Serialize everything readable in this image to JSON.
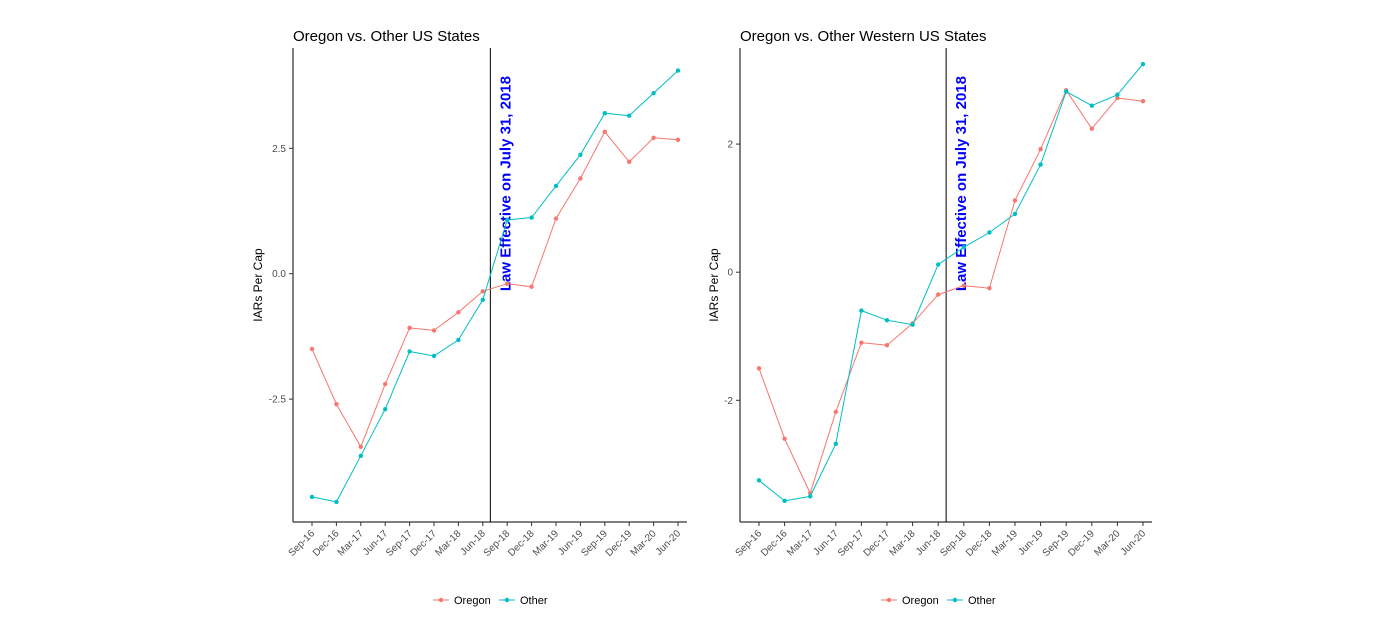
{
  "chart_data": [
    {
      "type": "line",
      "title": "Oregon vs. Other US States",
      "xlabel": "",
      "ylabel": "IARs Per Cap",
      "categories": [
        "Sep-16",
        "Dec-16",
        "Mar-17",
        "Jun-17",
        "Sep-17",
        "Dec-17",
        "Mar-18",
        "Jun-18",
        "Sep-18",
        "Dec-18",
        "Mar-19",
        "Jun-19",
        "Sep-19",
        "Dec-19",
        "Mar-20",
        "Jun-20"
      ],
      "yticks": [
        2.5,
        0.0,
        -2.5
      ],
      "ytick_labels": [
        "2.5",
        "0.0",
        "-2.5"
      ],
      "ylim": [
        -4.95,
        4.5
      ],
      "series": [
        {
          "name": "Oregon",
          "color": "#F8766D",
          "values": [
            -1.5,
            -2.6,
            -3.45,
            -2.2,
            -1.08,
            -1.13,
            -0.77,
            -0.35,
            -0.2,
            -0.26,
            1.1,
            1.9,
            2.83,
            2.23,
            2.71,
            2.67
          ]
        },
        {
          "name": "Other",
          "color": "#00BFC4",
          "values": [
            -4.45,
            -4.55,
            -3.63,
            -2.7,
            -1.55,
            -1.64,
            -1.32,
            -0.52,
            1.07,
            1.12,
            1.75,
            2.37,
            3.2,
            3.15,
            3.6,
            4.05
          ]
        }
      ],
      "vline": {
        "between": [
          "Jun-18",
          "Sep-18"
        ],
        "fraction": 0.31,
        "label": "Law Effective on July 31, 2018"
      },
      "legend": "bottom",
      "grid": false
    },
    {
      "type": "line",
      "title": "Oregon vs. Other Western US States",
      "xlabel": "",
      "ylabel": "IARs Per Cap",
      "categories": [
        "Sep-16",
        "Dec-16",
        "Mar-17",
        "Jun-17",
        "Sep-17",
        "Dec-17",
        "Mar-18",
        "Jun-18",
        "Sep-18",
        "Dec-18",
        "Mar-19",
        "Jun-19",
        "Sep-19",
        "Dec-19",
        "Mar-20",
        "Jun-20"
      ],
      "yticks": [
        2,
        0,
        -2
      ],
      "ytick_labels": [
        "2",
        "0",
        "-2"
      ],
      "ylim": [
        -3.9,
        3.5
      ],
      "series": [
        {
          "name": "Oregon",
          "color": "#F8766D",
          "values": [
            -1.5,
            -2.6,
            -3.45,
            -2.18,
            -1.1,
            -1.14,
            -0.8,
            -0.35,
            -0.21,
            -0.25,
            1.12,
            1.92,
            2.84,
            2.24,
            2.72,
            2.67
          ]
        },
        {
          "name": "Other",
          "color": "#00BFC4",
          "values": [
            -3.25,
            -3.57,
            -3.5,
            -2.68,
            -0.6,
            -0.75,
            -0.82,
            0.12,
            0.39,
            0.62,
            0.91,
            1.68,
            2.82,
            2.6,
            2.77,
            3.25
          ]
        }
      ],
      "vline": {
        "between": [
          "Jun-18",
          "Sep-18"
        ],
        "fraction": 0.31,
        "label": "Law Effective on July 31, 2018"
      },
      "legend": "bottom",
      "grid": false
    }
  ]
}
